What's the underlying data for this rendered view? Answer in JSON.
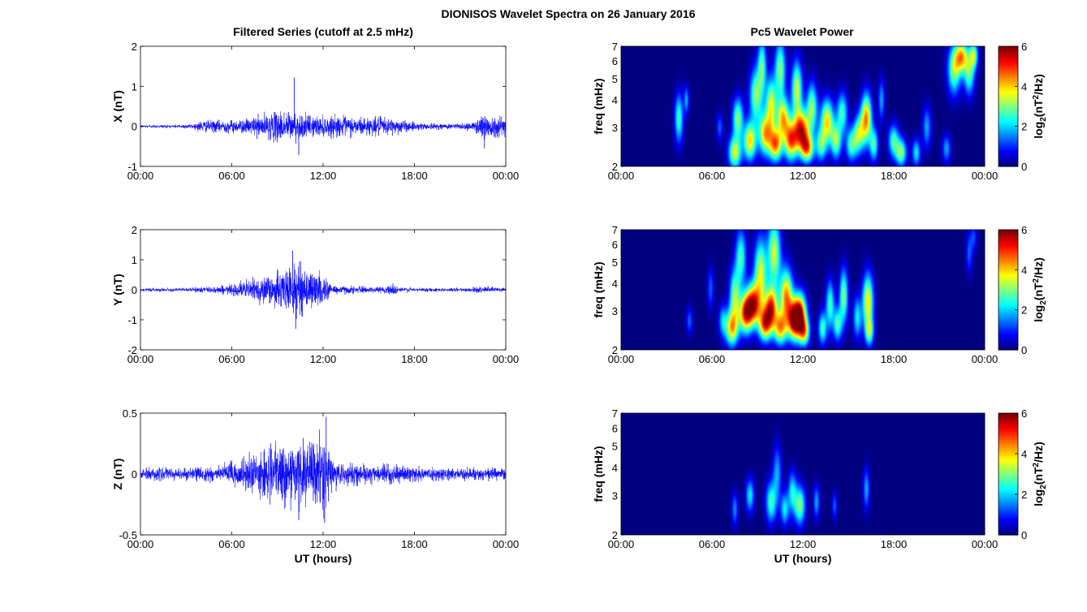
{
  "figure_title": "DIONISOS Wavelet Spectra on 26 January 2016",
  "left_column_title": "Filtered Series (cutoff at 2.5 mHz)",
  "right_column_title": "Pc5 Wavelet Power",
  "colors": {
    "trace": "#0000ff",
    "background": "#ffffff",
    "axis": "#000000"
  },
  "chart_data": [
    {
      "type": "line",
      "component": "X",
      "ylabel": "X (nT)",
      "xlabel": "",
      "xticks": [
        "00:00",
        "06:00",
        "12:00",
        "18:00",
        "00:00"
      ],
      "xlim_hours": [
        0,
        24
      ],
      "ylim": [
        -1,
        2
      ],
      "yticks": [
        "-1",
        "0",
        "1",
        "2"
      ],
      "envelope": {
        "hours": [
          0,
          2,
          3.5,
          4,
          5,
          6,
          7,
          7.5,
          8,
          9,
          9.5,
          10,
          10.5,
          11,
          12,
          13,
          14,
          15,
          16,
          17,
          18,
          19,
          20,
          21,
          22,
          22.5,
          23,
          24
        ],
        "amplitude_nT": [
          0.05,
          0.05,
          0.08,
          0.18,
          0.18,
          0.2,
          0.22,
          0.3,
          0.35,
          0.45,
          0.5,
          0.45,
          0.4,
          0.35,
          0.3,
          0.32,
          0.3,
          0.28,
          0.28,
          0.22,
          0.12,
          0.1,
          0.08,
          0.1,
          0.15,
          0.45,
          0.35,
          0.3
        ]
      },
      "peaks": [
        {
          "hour": 10.1,
          "value_nT": 1.22
        },
        {
          "hour": 10.4,
          "value_nT": -0.72
        },
        {
          "hour": 22.6,
          "value_nT": -0.55
        }
      ]
    },
    {
      "type": "line",
      "component": "Y",
      "ylabel": "Y (nT)",
      "xlabel": "",
      "xticks": [
        "00:00",
        "06:00",
        "12:00",
        "18:00",
        "00:00"
      ],
      "xlim_hours": [
        0,
        24
      ],
      "ylim": [
        -2,
        2
      ],
      "yticks": [
        "-2",
        "-1",
        "0",
        "1",
        "2"
      ],
      "envelope": {
        "hours": [
          0,
          3,
          4,
          5,
          6,
          6.5,
          7,
          8,
          9,
          10,
          10.5,
          11,
          12,
          12.5,
          13,
          14,
          15,
          16,
          16.5,
          17,
          18,
          20,
          22,
          23,
          24
        ],
        "amplitude_nT": [
          0.07,
          0.07,
          0.12,
          0.15,
          0.2,
          0.3,
          0.4,
          0.55,
          0.7,
          0.95,
          1.0,
          0.85,
          0.6,
          0.25,
          0.18,
          0.15,
          0.12,
          0.12,
          0.25,
          0.12,
          0.08,
          0.07,
          0.1,
          0.12,
          0.1
        ]
      },
      "peaks": [
        {
          "hour": 10.0,
          "value_nT": 1.3
        },
        {
          "hour": 10.2,
          "value_nT": -1.3
        }
      ]
    },
    {
      "type": "line",
      "component": "Z",
      "ylabel": "Z (nT)",
      "xlabel": "UT (hours)",
      "xticks": [
        "00:00",
        "06:00",
        "12:00",
        "18:00",
        "00:00"
      ],
      "xlim_hours": [
        0,
        24
      ],
      "ylim": [
        -0.5,
        0.5
      ],
      "yticks": [
        "-0.5",
        "0",
        "0.5"
      ],
      "envelope": {
        "hours": [
          0,
          3,
          4,
          5,
          6,
          7,
          8,
          9,
          10,
          11,
          12,
          12.5,
          13,
          14,
          15,
          16,
          17,
          18,
          19,
          20,
          22,
          24
        ],
        "amplitude_nT": [
          0.06,
          0.06,
          0.07,
          0.08,
          0.12,
          0.18,
          0.22,
          0.28,
          0.3,
          0.32,
          0.38,
          0.2,
          0.12,
          0.1,
          0.09,
          0.09,
          0.08,
          0.07,
          0.06,
          0.06,
          0.06,
          0.06
        ]
      },
      "peaks": [
        {
          "hour": 12.2,
          "value_nT": 0.47
        },
        {
          "hour": 12.1,
          "value_nT": -0.4
        },
        {
          "hour": 10.4,
          "value_nT": -0.38
        }
      ]
    },
    {
      "type": "heatmap",
      "component": "X",
      "ylabel": "freq (mHz)",
      "xlabel": "",
      "xticks": [
        "00:00",
        "06:00",
        "12:00",
        "18:00",
        "00:00"
      ],
      "xlim_hours": [
        0,
        24
      ],
      "ylim_mHz": [
        2,
        7
      ],
      "yscale": "log",
      "yticks": [
        "2",
        "3",
        "4",
        "5",
        "6",
        "7"
      ],
      "colorbar": {
        "label": "log2(nT2/Hz)",
        "range": [
          0,
          6
        ],
        "ticks": [
          "0",
          "2",
          "4",
          "6"
        ]
      },
      "blobs": [
        {
          "t": 3.8,
          "f": 3.3,
          "dt": 0.2,
          "df": 0.18,
          "p": 3.0
        },
        {
          "t": 4.3,
          "f": 4.0,
          "dt": 0.12,
          "df": 0.1,
          "p": 2.0
        },
        {
          "t": 6.5,
          "f": 3.0,
          "dt": 0.15,
          "df": 0.1,
          "p": 1.5
        },
        {
          "t": 7.5,
          "f": 2.3,
          "dt": 0.3,
          "df": 0.12,
          "p": 4.0
        },
        {
          "t": 7.7,
          "f": 3.3,
          "dt": 0.25,
          "df": 0.15,
          "p": 3.5
        },
        {
          "t": 8.5,
          "f": 2.6,
          "dt": 0.3,
          "df": 0.14,
          "p": 4.5
        },
        {
          "t": 8.9,
          "f": 4.2,
          "dt": 0.3,
          "df": 0.2,
          "p": 3.5
        },
        {
          "t": 9.3,
          "f": 5.8,
          "dt": 0.2,
          "df": 0.2,
          "p": 3.0
        },
        {
          "t": 9.5,
          "f": 2.8,
          "dt": 0.3,
          "df": 0.15,
          "p": 4.5
        },
        {
          "t": 9.9,
          "f": 3.8,
          "dt": 0.25,
          "df": 0.2,
          "p": 4.0
        },
        {
          "t": 10.2,
          "f": 2.5,
          "dt": 0.3,
          "df": 0.12,
          "p": 5.0
        },
        {
          "t": 10.5,
          "f": 5.5,
          "dt": 0.25,
          "df": 0.22,
          "p": 3.5
        },
        {
          "t": 10.7,
          "f": 3.3,
          "dt": 0.3,
          "df": 0.15,
          "p": 4.5
        },
        {
          "t": 11.2,
          "f": 2.6,
          "dt": 0.3,
          "df": 0.14,
          "p": 5.0
        },
        {
          "t": 11.6,
          "f": 4.5,
          "dt": 0.25,
          "df": 0.2,
          "p": 4.0
        },
        {
          "t": 11.9,
          "f": 2.9,
          "dt": 0.35,
          "df": 0.15,
          "p": 6.0
        },
        {
          "t": 12.3,
          "f": 2.4,
          "dt": 0.3,
          "df": 0.1,
          "p": 4.5
        },
        {
          "t": 12.6,
          "f": 3.7,
          "dt": 0.25,
          "df": 0.18,
          "p": 3.5
        },
        {
          "t": 13.2,
          "f": 2.5,
          "dt": 0.25,
          "df": 0.12,
          "p": 3.0
        },
        {
          "t": 13.6,
          "f": 3.2,
          "dt": 0.3,
          "df": 0.16,
          "p": 4.5
        },
        {
          "t": 14.2,
          "f": 2.6,
          "dt": 0.25,
          "df": 0.13,
          "p": 3.5
        },
        {
          "t": 14.6,
          "f": 3.5,
          "dt": 0.25,
          "df": 0.15,
          "p": 3.0
        },
        {
          "t": 15.2,
          "f": 2.5,
          "dt": 0.25,
          "df": 0.12,
          "p": 3.0
        },
        {
          "t": 15.7,
          "f": 2.8,
          "dt": 0.25,
          "df": 0.14,
          "p": 3.5
        },
        {
          "t": 16.2,
          "f": 3.3,
          "dt": 0.25,
          "df": 0.18,
          "p": 5.0
        },
        {
          "t": 16.7,
          "f": 2.5,
          "dt": 0.2,
          "df": 0.12,
          "p": 3.0
        },
        {
          "t": 17.2,
          "f": 4.0,
          "dt": 0.15,
          "df": 0.15,
          "p": 2.0
        },
        {
          "t": 18.0,
          "f": 2.6,
          "dt": 0.25,
          "df": 0.12,
          "p": 3.0
        },
        {
          "t": 18.5,
          "f": 2.3,
          "dt": 0.25,
          "df": 0.1,
          "p": 3.5
        },
        {
          "t": 19.5,
          "f": 2.3,
          "dt": 0.2,
          "df": 0.1,
          "p": 2.5
        },
        {
          "t": 20.2,
          "f": 3.0,
          "dt": 0.2,
          "df": 0.15,
          "p": 2.0
        },
        {
          "t": 21.5,
          "f": 2.4,
          "dt": 0.2,
          "df": 0.1,
          "p": 2.0
        },
        {
          "t": 22.0,
          "f": 5.5,
          "dt": 0.3,
          "df": 0.18,
          "p": 3.5
        },
        {
          "t": 22.5,
          "f": 6.3,
          "dt": 0.3,
          "df": 0.12,
          "p": 4.5
        },
        {
          "t": 23.0,
          "f": 5.2,
          "dt": 0.25,
          "df": 0.15,
          "p": 3.0
        },
        {
          "t": 23.3,
          "f": 6.4,
          "dt": 0.2,
          "df": 0.1,
          "p": 3.5
        }
      ]
    },
    {
      "type": "heatmap",
      "component": "Y",
      "ylabel": "freq (mHz)",
      "xlabel": "",
      "xticks": [
        "00:00",
        "06:00",
        "12:00",
        "18:00",
        "00:00"
      ],
      "xlim_hours": [
        0,
        24
      ],
      "ylim_mHz": [
        2,
        7
      ],
      "yscale": "log",
      "yticks": [
        "2",
        "3",
        "4",
        "5",
        "6",
        "7"
      ],
      "colorbar": {
        "label": "log2(nT2/Hz)",
        "range": [
          0,
          6
        ],
        "ticks": [
          "0",
          "2",
          "4",
          "6"
        ]
      },
      "blobs": [
        {
          "t": 4.5,
          "f": 2.7,
          "dt": 0.15,
          "df": 0.1,
          "p": 1.5
        },
        {
          "t": 5.9,
          "f": 3.8,
          "dt": 0.15,
          "df": 0.15,
          "p": 1.5
        },
        {
          "t": 6.7,
          "f": 2.7,
          "dt": 0.2,
          "df": 0.12,
          "p": 2.0
        },
        {
          "t": 7.3,
          "f": 2.5,
          "dt": 0.3,
          "df": 0.13,
          "p": 4.5
        },
        {
          "t": 7.5,
          "f": 3.5,
          "dt": 0.25,
          "df": 0.2,
          "p": 3.5
        },
        {
          "t": 7.9,
          "f": 5.3,
          "dt": 0.25,
          "df": 0.2,
          "p": 3.0
        },
        {
          "t": 8.2,
          "f": 2.9,
          "dt": 0.3,
          "df": 0.14,
          "p": 5.0
        },
        {
          "t": 8.7,
          "f": 3.2,
          "dt": 0.35,
          "df": 0.15,
          "p": 6.0
        },
        {
          "t": 9.2,
          "f": 4.5,
          "dt": 0.3,
          "df": 0.25,
          "p": 4.0
        },
        {
          "t": 9.5,
          "f": 2.6,
          "dt": 0.3,
          "df": 0.12,
          "p": 5.0
        },
        {
          "t": 9.9,
          "f": 3.1,
          "dt": 0.3,
          "df": 0.15,
          "p": 5.5
        },
        {
          "t": 10.1,
          "f": 5.5,
          "dt": 0.3,
          "df": 0.25,
          "p": 4.0
        },
        {
          "t": 10.5,
          "f": 2.5,
          "dt": 0.3,
          "df": 0.12,
          "p": 4.5
        },
        {
          "t": 10.9,
          "f": 3.5,
          "dt": 0.3,
          "df": 0.2,
          "p": 5.0
        },
        {
          "t": 11.4,
          "f": 2.7,
          "dt": 0.3,
          "df": 0.14,
          "p": 5.5
        },
        {
          "t": 11.8,
          "f": 2.9,
          "dt": 0.3,
          "df": 0.15,
          "p": 6.0
        },
        {
          "t": 12.1,
          "f": 2.4,
          "dt": 0.25,
          "df": 0.1,
          "p": 4.0
        },
        {
          "t": 13.3,
          "f": 2.5,
          "dt": 0.2,
          "df": 0.12,
          "p": 3.0
        },
        {
          "t": 13.8,
          "f": 3.2,
          "dt": 0.2,
          "df": 0.18,
          "p": 3.0
        },
        {
          "t": 14.3,
          "f": 2.6,
          "dt": 0.2,
          "df": 0.12,
          "p": 3.0
        },
        {
          "t": 14.7,
          "f": 3.5,
          "dt": 0.2,
          "df": 0.2,
          "p": 3.5
        },
        {
          "t": 15.6,
          "f": 2.8,
          "dt": 0.2,
          "df": 0.15,
          "p": 2.5
        },
        {
          "t": 16.3,
          "f": 3.3,
          "dt": 0.25,
          "df": 0.2,
          "p": 4.5
        },
        {
          "t": 16.4,
          "f": 2.4,
          "dt": 0.2,
          "df": 0.1,
          "p": 3.0
        },
        {
          "t": 23.0,
          "f": 5.5,
          "dt": 0.15,
          "df": 0.15,
          "p": 1.5
        },
        {
          "t": 23.3,
          "f": 6.5,
          "dt": 0.15,
          "df": 0.1,
          "p": 1.3
        }
      ]
    },
    {
      "type": "heatmap",
      "component": "Z",
      "ylabel": "freq (mHz)",
      "xlabel": "UT (hours)",
      "xticks": [
        "00:00",
        "06:00",
        "12:00",
        "18:00",
        "00:00"
      ],
      "xlim_hours": [
        0,
        24
      ],
      "ylim_mHz": [
        2,
        7
      ],
      "yscale": "log",
      "yticks": [
        "2",
        "3",
        "4",
        "5",
        "6",
        "7"
      ],
      "colorbar": {
        "label": "log2(nT2/Hz)",
        "range": [
          0,
          6
        ],
        "ticks": [
          "0",
          "2",
          "4",
          "6"
        ]
      },
      "blobs": [
        {
          "t": 7.5,
          "f": 2.6,
          "dt": 0.15,
          "df": 0.12,
          "p": 1.8
        },
        {
          "t": 8.5,
          "f": 3.0,
          "dt": 0.2,
          "df": 0.12,
          "p": 2.5
        },
        {
          "t": 9.9,
          "f": 2.8,
          "dt": 0.25,
          "df": 0.15,
          "p": 3.0
        },
        {
          "t": 10.3,
          "f": 3.8,
          "dt": 0.2,
          "df": 0.2,
          "p": 2.0
        },
        {
          "t": 10.8,
          "f": 2.6,
          "dt": 0.2,
          "df": 0.12,
          "p": 2.5
        },
        {
          "t": 11.3,
          "f": 3.1,
          "dt": 0.2,
          "df": 0.15,
          "p": 2.5
        },
        {
          "t": 11.8,
          "f": 2.7,
          "dt": 0.25,
          "df": 0.14,
          "p": 3.5
        },
        {
          "t": 12.9,
          "f": 2.8,
          "dt": 0.15,
          "df": 0.12,
          "p": 2.0
        },
        {
          "t": 14.1,
          "f": 2.7,
          "dt": 0.12,
          "df": 0.1,
          "p": 1.5
        },
        {
          "t": 16.2,
          "f": 3.2,
          "dt": 0.15,
          "df": 0.15,
          "p": 2.0
        }
      ]
    }
  ]
}
